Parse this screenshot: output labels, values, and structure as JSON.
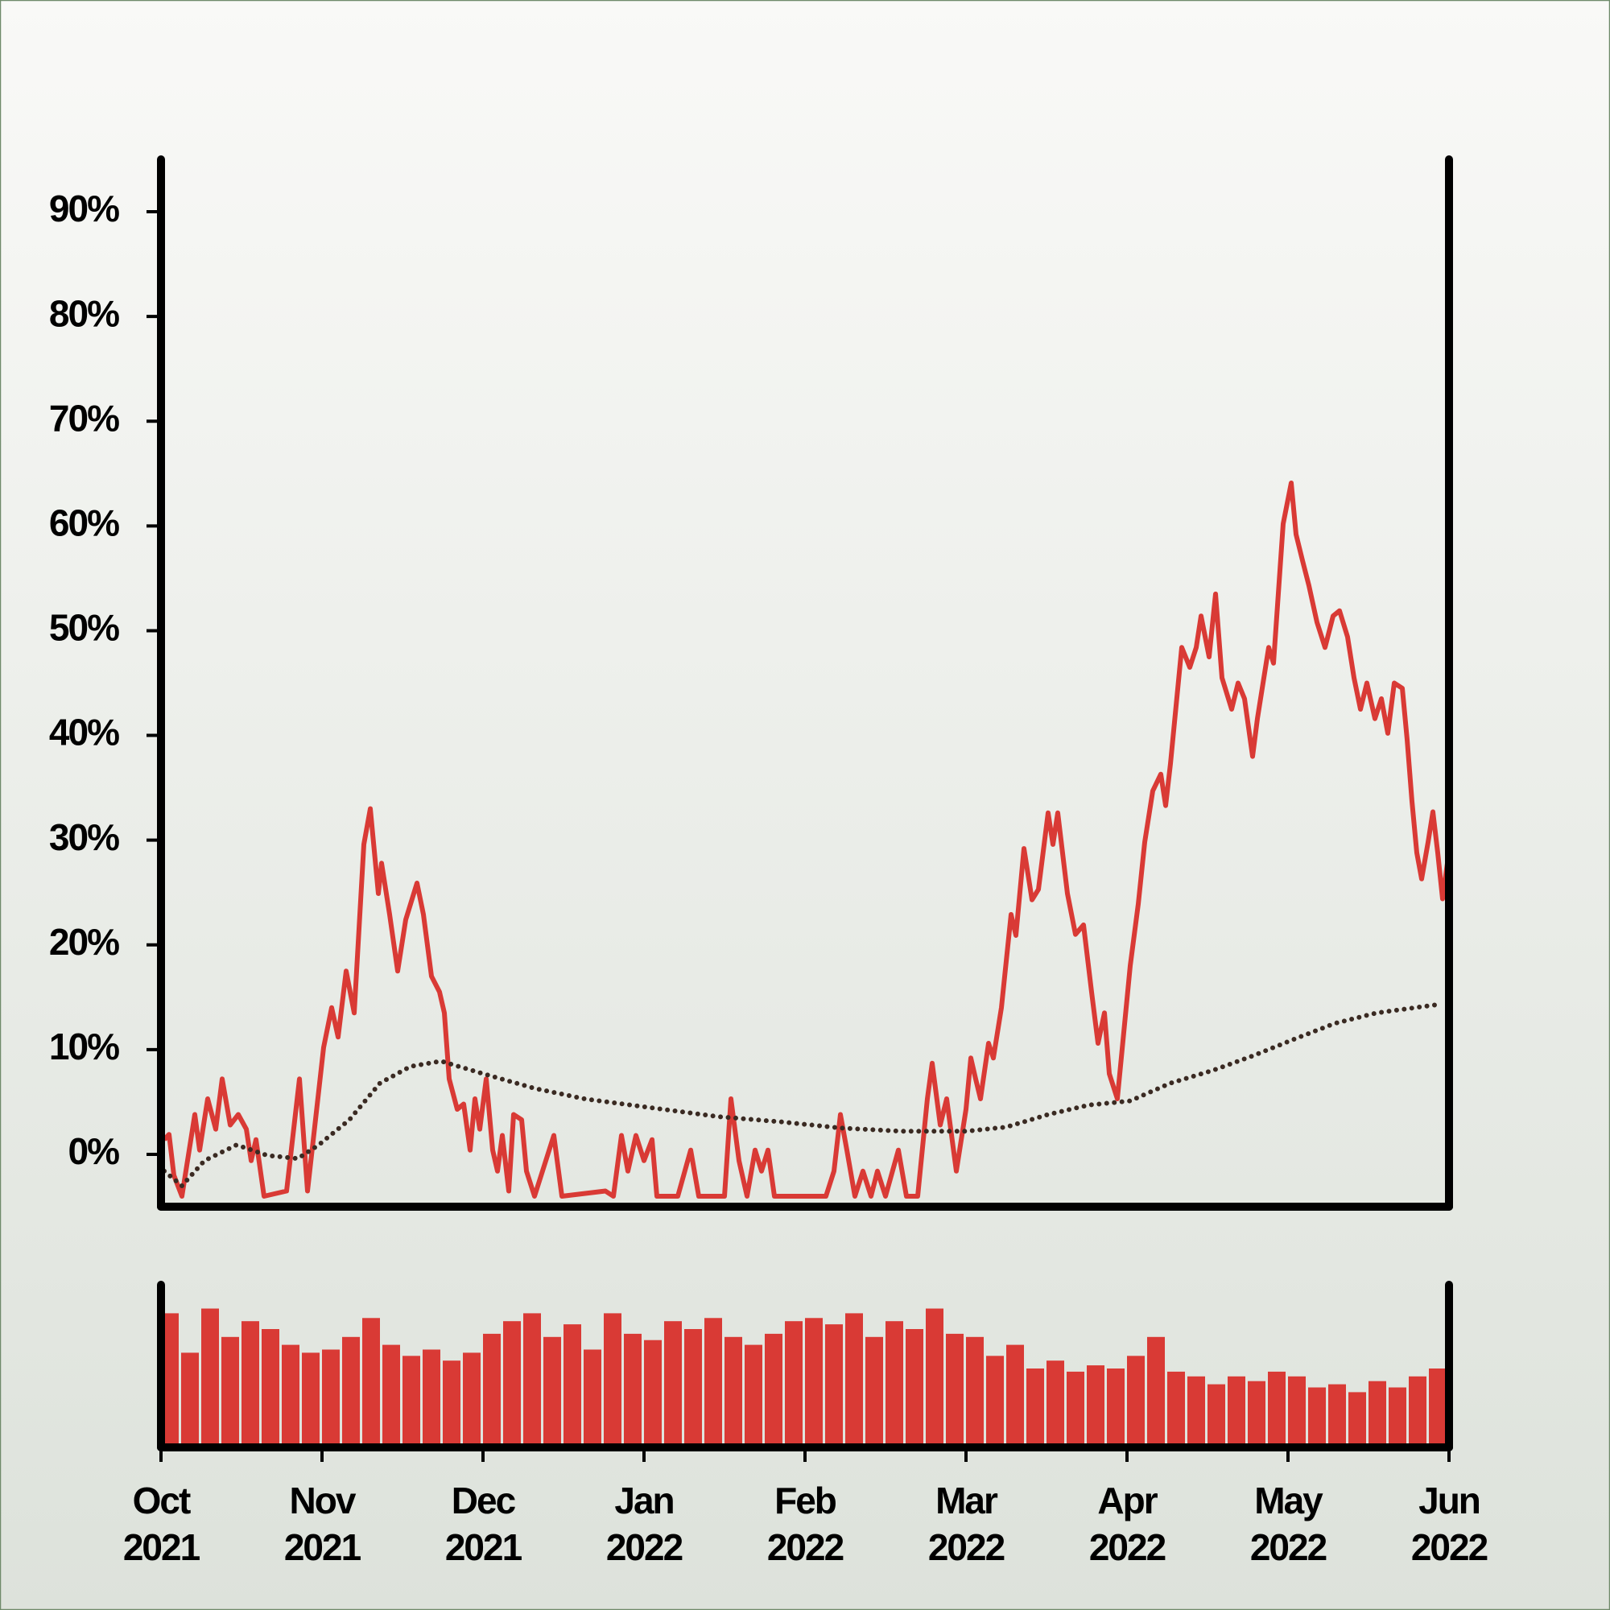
{
  "chart_data": [
    {
      "type": "line",
      "xlim": [
        0,
        8
      ],
      "xticks": [
        {
          "value": 0,
          "label": "Oct 2021"
        },
        {
          "value": 1,
          "label": "Nov 2021"
        },
        {
          "value": 2,
          "label": "Dec 2021"
        },
        {
          "value": 3,
          "label": "Jan 2022"
        },
        {
          "value": 4,
          "label": "Feb 2022"
        },
        {
          "value": 5,
          "label": "Mar 2022"
        },
        {
          "value": 6,
          "label": "Apr 2022"
        },
        {
          "value": 7,
          "label": "May 2022"
        },
        {
          "value": 8,
          "label": "Jun 2022"
        }
      ],
      "ylim": [
        -5,
        95
      ],
      "yticks": [
        {
          "value": 0,
          "label": "0%"
        },
        {
          "value": 10,
          "label": "10%"
        },
        {
          "value": 20,
          "label": "20%"
        },
        {
          "value": 30,
          "label": "30%"
        },
        {
          "value": 40,
          "label": "40%"
        },
        {
          "value": 50,
          "label": "50%"
        },
        {
          "value": 60,
          "label": "60%"
        },
        {
          "value": 70,
          "label": "70%"
        },
        {
          "value": 80,
          "label": "80%"
        },
        {
          "value": 90,
          "label": "90%"
        }
      ],
      "series": [
        {
          "color": "#d93a35",
          "style": "solid",
          "x": [
            0.02,
            0.05,
            0.08,
            0.13,
            0.21,
            0.24,
            0.29,
            0.34,
            0.38,
            0.43,
            0.48,
            0.53,
            0.56,
            0.59,
            0.64,
            0.78,
            0.86,
            0.91,
            1.01,
            1.06,
            1.1,
            1.15,
            1.2,
            1.26,
            1.3,
            1.35,
            1.37,
            1.42,
            1.47,
            1.52,
            1.59,
            1.63,
            1.68,
            1.73,
            1.76,
            1.79,
            1.84,
            1.88,
            1.92,
            1.95,
            1.98,
            2.02,
            2.06,
            2.09,
            2.12,
            2.16,
            2.19,
            2.24,
            2.27,
            2.32,
            2.44,
            2.49,
            2.76,
            2.81,
            2.86,
            2.9,
            2.95,
            3.0,
            3.05,
            3.08,
            3.21,
            3.29,
            3.34,
            3.5,
            3.54,
            3.59,
            3.64,
            3.69,
            3.73,
            3.77,
            3.81,
            4.13,
            4.18,
            4.22,
            4.26,
            4.31,
            4.36,
            4.41,
            4.45,
            4.5,
            4.58,
            4.63,
            4.7,
            4.76,
            4.79,
            4.84,
            4.88,
            4.94,
            5.0,
            5.03,
            5.06,
            5.09,
            5.14,
            5.17,
            5.22,
            5.28,
            5.31,
            5.36,
            5.41,
            5.45,
            5.51,
            5.54,
            5.57,
            5.63,
            5.68,
            5.73,
            5.78,
            5.82,
            5.86,
            5.89,
            5.94,
            6.02,
            6.07,
            6.11,
            6.16,
            6.21,
            6.24,
            6.27,
            6.34,
            6.39,
            6.43,
            6.46,
            6.51,
            6.55,
            6.59,
            6.65,
            6.69,
            6.73,
            6.78,
            6.81,
            6.88,
            6.91,
            6.97,
            7.02,
            7.05,
            7.09,
            7.13,
            7.18,
            7.23,
            7.28,
            7.32,
            7.37,
            7.41,
            7.45,
            7.49,
            7.54,
            7.58,
            7.62,
            7.66,
            7.71,
            7.74,
            7.77,
            7.8,
            7.83,
            7.87,
            7.9,
            7.93,
            7.96,
            7.99
          ],
          "values": [
            1.4,
            1.9,
            -2.0,
            -4.0,
            3.8,
            0.4,
            5.3,
            2.4,
            7.2,
            2.8,
            3.8,
            2.4,
            -0.6,
            1.4,
            -4.0,
            -3.5,
            7.2,
            -3.5,
            10.2,
            14.0,
            11.2,
            17.5,
            13.5,
            29.6,
            33.0,
            24.9,
            27.8,
            22.9,
            17.5,
            22.4,
            25.9,
            22.9,
            17.0,
            15.5,
            13.5,
            7.2,
            4.3,
            4.8,
            0.4,
            5.3,
            2.4,
            7.2,
            0.4,
            -1.6,
            1.8,
            -3.5,
            3.8,
            3.3,
            -1.6,
            -4.0,
            1.8,
            -4.0,
            -3.5,
            -4.0,
            1.8,
            -1.6,
            1.8,
            -0.6,
            1.4,
            -4.0,
            -4.0,
            0.4,
            -4.0,
            -4.0,
            5.3,
            -0.6,
            -4.0,
            0.4,
            -1.6,
            0.4,
            -4.0,
            -4.0,
            -1.6,
            3.8,
            0.4,
            -4.0,
            -1.6,
            -4.0,
            -1.6,
            -4.0,
            0.4,
            -4.0,
            -4.0,
            5.3,
            8.7,
            2.8,
            5.3,
            -1.6,
            4.3,
            9.2,
            7.2,
            5.3,
            10.6,
            9.2,
            14.0,
            22.9,
            20.9,
            29.2,
            24.3,
            25.3,
            32.6,
            29.6,
            32.6,
            24.9,
            21.0,
            21.9,
            15.5,
            10.6,
            13.5,
            7.7,
            5.3,
            18.0,
            23.9,
            29.8,
            34.7,
            36.3,
            33.3,
            37.3,
            48.4,
            46.5,
            48.4,
            51.4,
            47.5,
            53.5,
            45.5,
            42.5,
            45.0,
            43.5,
            38.0,
            41.6,
            48.4,
            46.9,
            60.2,
            64.1,
            59.2,
            56.7,
            54.3,
            50.8,
            48.4,
            51.4,
            51.9,
            49.4,
            45.5,
            42.5,
            45.0,
            41.6,
            43.5,
            40.2,
            45.0,
            44.5,
            39.6,
            33.7,
            28.8,
            26.3,
            29.8,
            32.7,
            28.8,
            24.4,
            27.8
          ]
        },
        {
          "color": "#3a2a22",
          "style": "dotted",
          "x": [
            0.02,
            0.13,
            0.27,
            0.47,
            0.66,
            0.85,
            0.98,
            1.17,
            1.36,
            1.55,
            1.74,
            2.0,
            2.32,
            2.63,
            3.02,
            3.46,
            3.85,
            4.23,
            4.61,
            5.0,
            5.25,
            5.51,
            5.76,
            6.02,
            6.27,
            6.53,
            6.78,
            7.04,
            7.29,
            7.55,
            7.93
          ],
          "values": [
            -1.6,
            -3.0,
            -0.6,
            0.9,
            -0.1,
            -0.4,
            0.9,
            3.3,
            6.8,
            8.4,
            8.9,
            7.7,
            6.3,
            5.3,
            4.5,
            3.6,
            3.1,
            2.5,
            2.2,
            2.2,
            2.6,
            3.8,
            4.7,
            5.1,
            6.8,
            8.0,
            9.4,
            11.0,
            12.5,
            13.5,
            14.3
          ]
        }
      ]
    },
    {
      "type": "bar",
      "color": "#d93a35",
      "xlim": [
        0,
        8
      ],
      "ylim": [
        0,
        100
      ],
      "x": [
        0,
        0.125,
        0.25,
        0.375,
        0.5,
        0.625,
        0.75,
        0.875,
        1,
        1.125,
        1.25,
        1.375,
        1.5,
        1.625,
        1.75,
        1.875,
        2,
        2.125,
        2.25,
        2.375,
        2.5,
        2.625,
        2.75,
        2.875,
        3,
        3.125,
        3.25,
        3.375,
        3.5,
        3.625,
        3.75,
        3.875,
        4,
        4.125,
        4.25,
        4.375,
        4.5,
        4.625,
        4.75,
        4.875,
        5,
        5.125,
        5.25,
        5.375,
        5.5,
        5.625,
        5.75,
        5.875,
        6,
        6.125,
        6.25,
        6.375,
        6.5,
        6.625,
        6.75,
        6.875,
        7,
        7.125,
        7.25,
        7.375,
        7.5,
        7.625,
        7.75,
        7.875
      ],
      "values": [
        85,
        60,
        88,
        70,
        80,
        75,
        65,
        60,
        62,
        70,
        82,
        65,
        58,
        62,
        55,
        60,
        72,
        80,
        85,
        70,
        78,
        62,
        85,
        72,
        68,
        80,
        75,
        82,
        70,
        65,
        72,
        80,
        82,
        78,
        85,
        70,
        80,
        75,
        88,
        72,
        70,
        58,
        65,
        50,
        55,
        48,
        52,
        50,
        58,
        70,
        48,
        45,
        40,
        45,
        42,
        48,
        45,
        38,
        40,
        35,
        42,
        38,
        45,
        50
      ]
    }
  ]
}
